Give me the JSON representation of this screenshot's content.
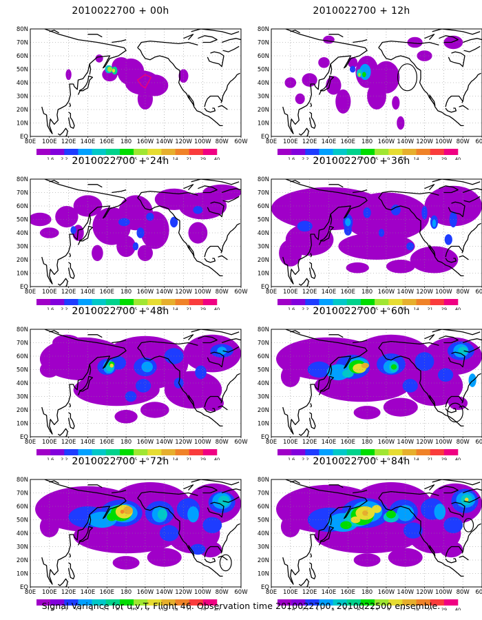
{
  "caption": "Signal Variance for u,v,T. Flight 46. Observation time 2010022700. 2010022500 ensemble.",
  "map_axes": {
    "lon_labels": [
      "80E",
      "100E",
      "120E",
      "140E",
      "160E",
      "180",
      "160W",
      "140W",
      "120W",
      "100W",
      "80W",
      "60W"
    ],
    "lat_labels": [
      "EQ",
      "10N",
      "20N",
      "30N",
      "40N",
      "50N",
      "60N",
      "70N",
      "80N"
    ]
  },
  "colorbar": {
    "levels": [
      "1.6",
      "2.2",
      "3.1",
      "4",
      "5.1",
      "6.3",
      "7.5",
      "9",
      "11",
      "14",
      "21",
      "29",
      "40"
    ],
    "colors": [
      "#a000c8",
      "#8200dc",
      "#1e3cff",
      "#00a0ff",
      "#00c8c8",
      "#00d28c",
      "#00dc00",
      "#a0e632",
      "#e6dc32",
      "#e6af2d",
      "#f08228",
      "#fa3c3c",
      "#f00082"
    ]
  },
  "chart_data": [
    {
      "type": "heatmap",
      "title": "2010022700 + 00h",
      "forecast_hour": 0
    },
    {
      "type": "heatmap",
      "title": "2010022700 + 12h",
      "forecast_hour": 12
    },
    {
      "type": "heatmap",
      "title": "2010022700 + 24h",
      "forecast_hour": 24
    },
    {
      "type": "heatmap",
      "title": "2010022700 + 36h",
      "forecast_hour": 36
    },
    {
      "type": "heatmap",
      "title": "2010022700 + 48h",
      "forecast_hour": 48
    },
    {
      "type": "heatmap",
      "title": "2010022700 + 60h",
      "forecast_hour": 60
    },
    {
      "type": "heatmap",
      "title": "2010022700 + 72h",
      "forecast_hour": 72
    },
    {
      "type": "heatmap",
      "title": "2010022700 + 84h",
      "forecast_hour": 84
    }
  ]
}
